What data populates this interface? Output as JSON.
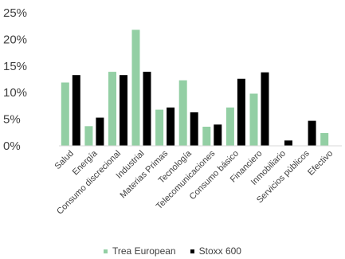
{
  "chart_data": {
    "type": "bar",
    "categories": [
      "Salud",
      "Energía",
      "Consumo discrecional",
      "Industrial",
      "Materias Primas",
      "Tecnología",
      "Telecomunicaciones",
      "Consumo básico",
      "Financiero",
      "Inmobiliario",
      "Servicios públicos",
      "Efectivo"
    ],
    "series": [
      {
        "name": "Trea European",
        "color": "#93cfa4",
        "values": [
          11.9,
          3.7,
          13.9,
          21.8,
          6.8,
          12.3,
          3.6,
          7.2,
          9.8,
          0.0,
          0.0,
          2.4
        ]
      },
      {
        "name": "Stoxx 600",
        "color": "#000000",
        "values": [
          13.3,
          5.3,
          13.3,
          13.9,
          7.2,
          6.3,
          4.0,
          12.6,
          13.8,
          1.0,
          4.7,
          0.0
        ]
      }
    ],
    "ylim": [
      0,
      25
    ],
    "yticks": [
      "0%",
      "5%",
      "10%",
      "15%",
      "20%",
      "25%"
    ],
    "legend_position": "bottom"
  }
}
